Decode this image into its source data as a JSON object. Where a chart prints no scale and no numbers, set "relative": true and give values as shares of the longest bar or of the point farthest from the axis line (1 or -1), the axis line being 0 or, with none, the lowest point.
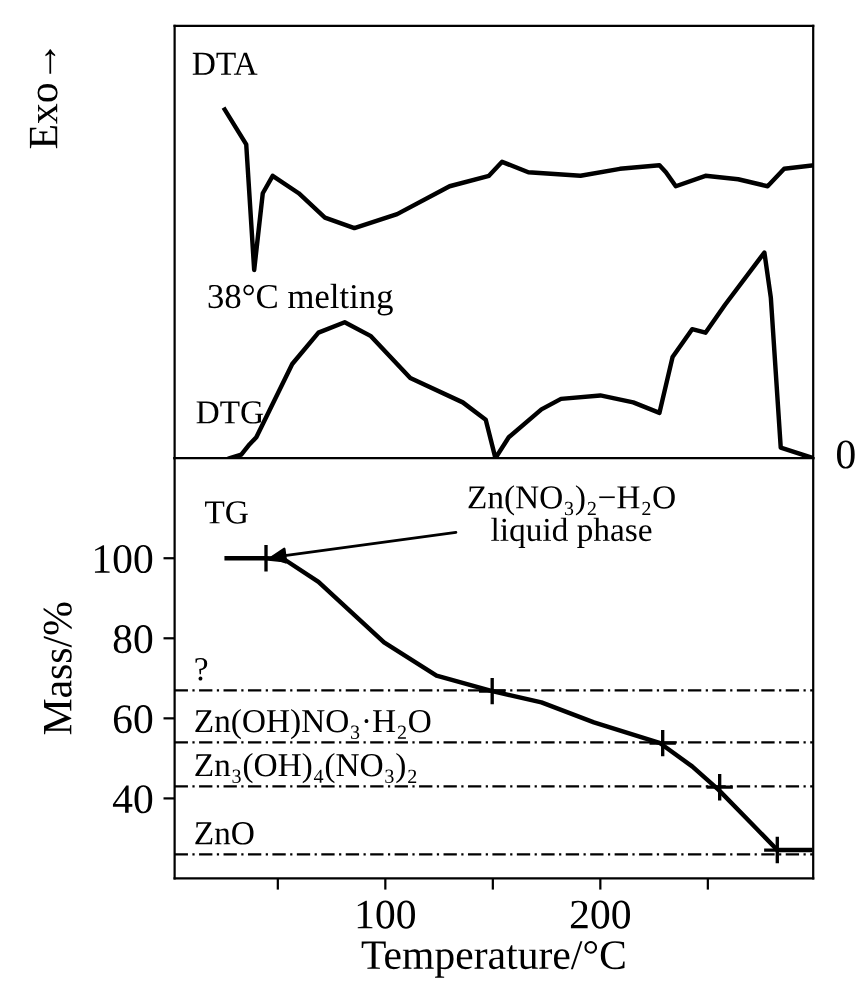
{
  "chart_data": [
    {
      "type": "line",
      "relative": true,
      "xlim": [
        2,
        299
      ],
      "tick_labels": false,
      "ylabel": "Exo→",
      "series": [
        {
          "name": "DTA",
          "color": "#000000",
          "x": [
            25.3,
            35.3,
            39.0,
            43.0,
            47.6,
            59.7,
            71.9,
            85.6,
            105.5,
            129.9,
            148.2,
            154.3,
            166.5,
            190.8,
            209.1,
            227.5,
            230.5,
            235.1,
            248.9,
            264.1,
            277.8,
            285.5,
            299.0
          ],
          "values": [
            1.0,
            0.9,
            0.54,
            0.76,
            0.81,
            0.76,
            0.69,
            0.66,
            0.7,
            0.78,
            0.81,
            0.85,
            0.82,
            0.81,
            0.83,
            0.84,
            0.82,
            0.78,
            0.81,
            0.8,
            0.78,
            0.83,
            0.84
          ]
        },
        {
          "name": "DTG",
          "color": "#000000",
          "x": [
            27.7,
            33.0,
            36.9,
            40.0,
            56.7,
            68.9,
            81.1,
            93.3,
            111.6,
            136.0,
            146.7,
            151.2,
            157.4,
            172.6,
            181.7,
            200.0,
            215.3,
            227.5,
            233.6,
            242.7,
            248.9,
            258.0,
            276.3,
            279.3,
            283.9,
            299.0
          ],
          "values": [
            0,
            0.01,
            0.04,
            0.06,
            0.27,
            0.36,
            0.39,
            0.35,
            0.23,
            0.16,
            0.11,
            0,
            0.06,
            0.14,
            0.17,
            0.18,
            0.16,
            0.13,
            0.29,
            0.37,
            0.36,
            0.44,
            0.59,
            0.46,
            0.03,
            0
          ]
        }
      ],
      "annotations": [
        {
          "text": "38°C melting",
          "x": 39.0,
          "y": 0.54
        },
        {
          "text": "0",
          "x": 299,
          "y": 0
        }
      ]
    },
    {
      "type": "line",
      "xlim": [
        2,
        299
      ],
      "ylim": [
        20,
        125
      ],
      "xticks": [
        {
          "value": 50,
          "label": null
        },
        100,
        {
          "value": 150,
          "label": null
        },
        200,
        {
          "value": 250,
          "label": null
        }
      ],
      "yticks": [
        40,
        60,
        80,
        100
      ],
      "xlabel": "Temperature/°C",
      "ylabel": "Mass/%",
      "series": [
        {
          "name": "TG",
          "color": "#000000",
          "x": [
            26.2,
            44.5,
            53.6,
            68.9,
            99.4,
            123.8,
            149.7,
            172.6,
            197.0,
            227.5,
            242.7,
            254.9,
            270.2,
            282.3,
            297.6
          ],
          "values": [
            100,
            100,
            99.5,
            94.1,
            79.0,
            70.7,
            66.8,
            64.0,
            59.0,
            53.9,
            48.0,
            42.2,
            33.8,
            27.1,
            27.1
          ]
        },
        {
          "type": "scatter",
          "marker": "cross",
          "color": "#000000",
          "x": [
            44.5,
            149.7,
            229.0,
            255.5,
            282.3
          ],
          "values": [
            100,
            66.8,
            53.8,
            42.8,
            27.1
          ]
        }
      ],
      "ref_lines": [
        {
          "axis": "y",
          "value": 67,
          "label": "?",
          "color": "#000000",
          "line_style": "dashed"
        },
        {
          "axis": "y",
          "value": 54,
          "label": "Zn(OH)NO₃·H₂O",
          "color": "#000000",
          "line_style": "dashed"
        },
        {
          "axis": "y",
          "value": 43,
          "label": "Zn₃(OH)₄(NO₃)₂",
          "color": "#000000",
          "line_style": "dashed"
        },
        {
          "axis": "y",
          "value": 26,
          "label": "ZnO",
          "color": "#000000",
          "line_style": "dashed"
        }
      ],
      "annotations": [
        {
          "text": "Zn(NO₃)₂−H₂O\nliquid phase",
          "x": 44.5,
          "y": 100
        }
      ]
    }
  ]
}
